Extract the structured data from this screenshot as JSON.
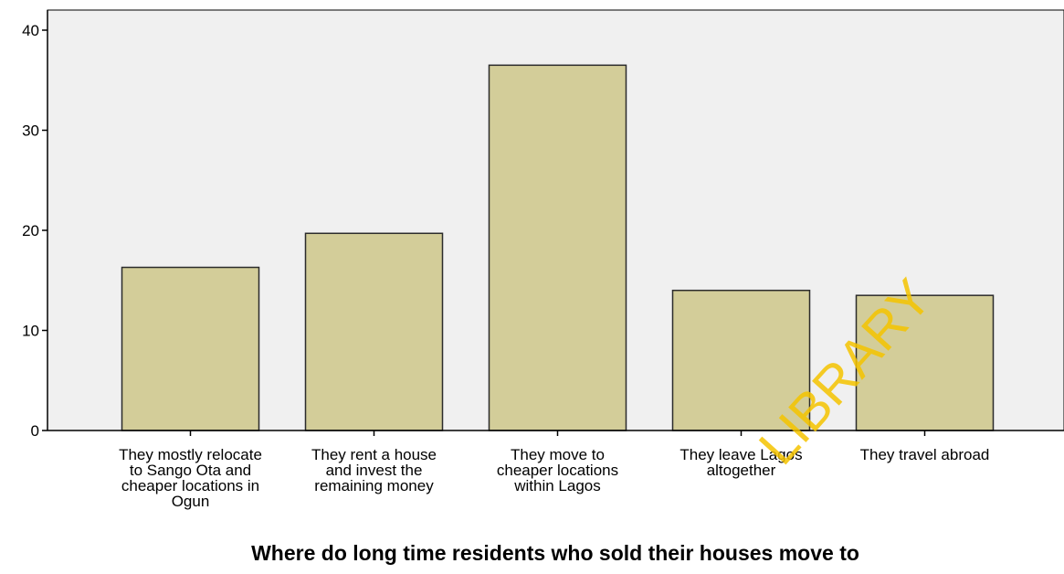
{
  "chart_data": {
    "type": "bar",
    "title": "Where do long time residents who sold their houses move to",
    "xlabel": "",
    "ylabel": "",
    "categories": [
      [
        "They mostly relocate",
        "to Sango Ota and",
        "cheaper locations in",
        "Ogun"
      ],
      [
        "They rent a house",
        "and invest the",
        "remaining money"
      ],
      [
        "They move to",
        "cheaper locations",
        "within Lagos"
      ],
      [
        "They leave Lagos",
        "altogether"
      ],
      [
        "They travel abroad"
      ]
    ],
    "values": [
      16.3,
      19.7,
      36.5,
      14.0,
      13.5
    ],
    "ylim": [
      0,
      40
    ],
    "yticks": [
      0,
      10,
      20,
      30,
      40
    ],
    "grid": false,
    "colors": {
      "bar_fill": "#d3cd99",
      "bar_stroke": "#2b2b2b",
      "plot_bg": "#f0f0f0",
      "axis": "#000000"
    }
  },
  "watermark": {
    "text": "LIBRARY",
    "color": "#f5c400"
  }
}
